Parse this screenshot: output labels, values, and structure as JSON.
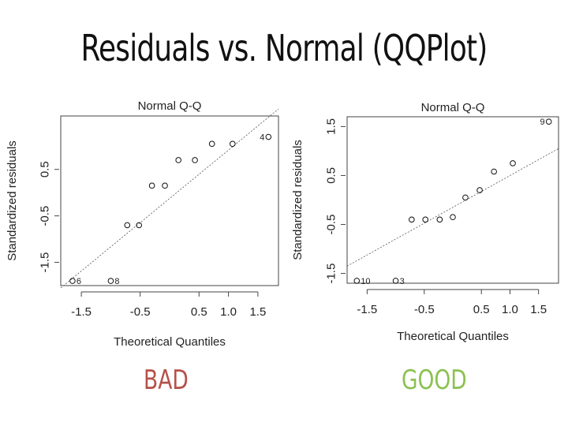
{
  "slide": {
    "title": "Residuals vs. Normal (QQPlot)",
    "bad_label": "BAD",
    "good_label": "GOOD",
    "bad_color": "#b5524a",
    "good_color": "#8cc152"
  },
  "chart_data": [
    {
      "type": "scatter",
      "title": "Normal Q-Q",
      "xlabel": "Theoretical Quantiles",
      "ylabel": "Standardized residuals",
      "xlim": [
        -1.85,
        1.85
      ],
      "ylim": [
        -2.0,
        1.65
      ],
      "x_ticks": [
        -1.5,
        -0.5,
        0.5,
        1.0,
        1.5
      ],
      "x_tick_labels": [
        "-1.5",
        "-0.5",
        "0.5",
        "1.0",
        "1.5"
      ],
      "y_ticks": [
        -1.5,
        -0.5,
        0.5
      ],
      "y_tick_labels": [
        "-1.5",
        "-0.5",
        "0.5"
      ],
      "points": [
        {
          "x": -1.65,
          "y": -1.9
        },
        {
          "x": -1.0,
          "y": -1.9
        },
        {
          "x": -0.72,
          "y": -0.7
        },
        {
          "x": -0.52,
          "y": -0.7
        },
        {
          "x": -0.3,
          "y": 0.15
        },
        {
          "x": -0.08,
          "y": 0.15
        },
        {
          "x": 0.15,
          "y": 0.7
        },
        {
          "x": 0.43,
          "y": 0.7
        },
        {
          "x": 0.72,
          "y": 1.05
        },
        {
          "x": 1.07,
          "y": 1.05
        },
        {
          "x": 1.68,
          "y": 1.2
        }
      ],
      "reference_line": {
        "x": [
          -1.85,
          1.85
        ],
        "y": [
          -2.05,
          1.8
        ]
      },
      "annotations": [
        {
          "label": "6",
          "x": -1.65,
          "y": -1.9,
          "side": "right"
        },
        {
          "label": "8",
          "x": -1.0,
          "y": -1.9,
          "side": "right"
        },
        {
          "label": "4",
          "x": 1.68,
          "y": 1.2,
          "side": "left"
        }
      ]
    },
    {
      "type": "scatter",
      "title": "Normal Q-Q",
      "xlabel": "Theoretical Quantiles",
      "ylabel": "Standardized residuals",
      "xlim": [
        -1.85,
        1.85
      ],
      "ylim": [
        -1.7,
        1.7
      ],
      "x_ticks": [
        -1.5,
        -0.5,
        0.5,
        1.0,
        1.5
      ],
      "x_tick_labels": [
        "-1.5",
        "-0.5",
        "0.5",
        "1.0",
        "1.5"
      ],
      "y_ticks": [
        -1.5,
        -0.5,
        0.5,
        1.5
      ],
      "y_tick_labels": [
        "-1.5",
        "-0.5",
        "0.5",
        "1.5"
      ],
      "points": [
        {
          "x": -1.68,
          "y": -1.65
        },
        {
          "x": -1.0,
          "y": -1.65
        },
        {
          "x": -0.72,
          "y": -0.4
        },
        {
          "x": -0.48,
          "y": -0.4
        },
        {
          "x": -0.23,
          "y": -0.4
        },
        {
          "x": 0.0,
          "y": -0.35
        },
        {
          "x": 0.22,
          "y": 0.05
        },
        {
          "x": 0.47,
          "y": 0.2
        },
        {
          "x": 0.72,
          "y": 0.58
        },
        {
          "x": 1.05,
          "y": 0.75
        },
        {
          "x": 1.68,
          "y": 1.6
        }
      ],
      "reference_line": {
        "x": [
          -1.85,
          1.85
        ],
        "y": [
          -1.35,
          1.05
        ]
      },
      "annotations": [
        {
          "label": "10",
          "x": -1.68,
          "y": -1.65,
          "side": "right"
        },
        {
          "label": "3",
          "x": -1.0,
          "y": -1.65,
          "side": "right"
        },
        {
          "label": "9",
          "x": 1.68,
          "y": 1.6,
          "side": "left"
        }
      ]
    }
  ]
}
